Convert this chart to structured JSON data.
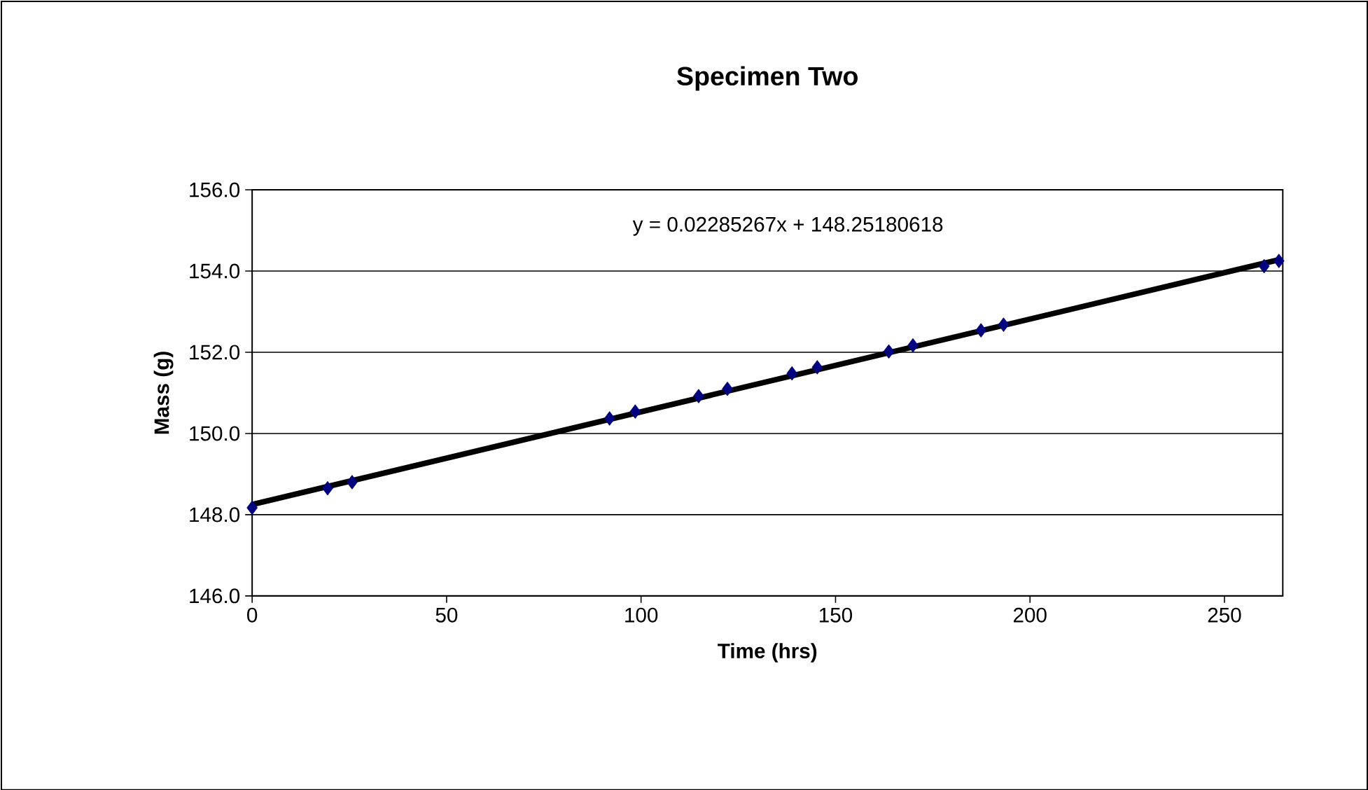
{
  "chart_data": {
    "type": "scatter",
    "title": "Specimen Two",
    "xlabel": "Time (hrs)",
    "ylabel": "Mass (g)",
    "xlim": [
      0,
      265
    ],
    "xticks": [
      0,
      50,
      100,
      150,
      200,
      250
    ],
    "ylim": [
      146,
      156
    ],
    "yticks": [
      {
        "value": 146,
        "label": "146.0"
      },
      {
        "value": 148,
        "label": "148.0"
      },
      {
        "value": 150,
        "label": "150.0"
      },
      {
        "value": 152,
        "label": "152.0"
      },
      {
        "value": 154,
        "label": "154.0"
      },
      {
        "value": 156,
        "label": "156.0"
      }
    ],
    "grid": "y",
    "series": [
      {
        "color": "#000080",
        "marker": "diamond",
        "x": [
          0,
          19.4,
          25.7,
          91.9,
          98.5,
          114.8,
          122.2,
          138.8,
          145.3,
          163.7,
          169.9,
          187.4,
          193.2,
          260.2,
          264
        ],
        "values": [
          148.17,
          148.65,
          148.8,
          150.37,
          150.54,
          150.92,
          151.1,
          151.48,
          151.63,
          152.02,
          152.17,
          152.54,
          152.68,
          154.12,
          154.25
        ]
      },
      {
        "type": "line",
        "color": "#000000",
        "x": [
          0,
          264
        ],
        "values": [
          148.25,
          154.28
        ]
      }
    ],
    "annotations": [
      "y = 0.02285267x + 148.25180618"
    ]
  }
}
